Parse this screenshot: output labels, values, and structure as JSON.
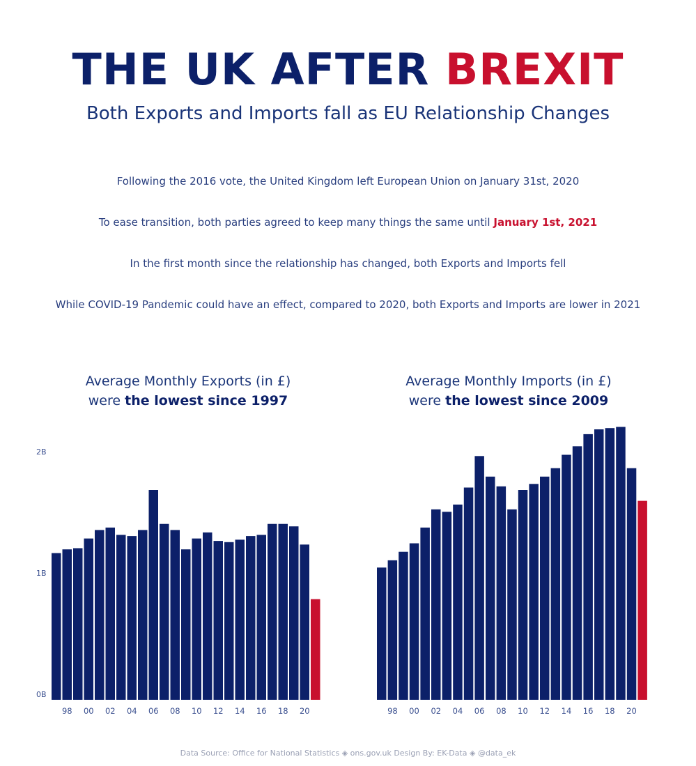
{
  "header": {
    "title_part1": "THE UK AFTER ",
    "title_part2": "BREXIT",
    "subtitle": "Both Exports and Imports fall as EU Relationship Changes"
  },
  "paragraphs": {
    "p1": "Following the 2016 vote, the United Kingdom left European Union on January 31st, 2020",
    "p2_prefix": "To ease transition, both parties agreed to keep many things the same until ",
    "p2_highlight": "January 1st, 2021",
    "p3": "In the first month since the relationship has changed, both Exports and Imports fell",
    "p4": "While COVID-19 Pandemic could have an effect, compared to 2020, both Exports and Imports are lower in 2021"
  },
  "footer": {
    "text": "Data Source: Office for National Statistics ◈ ons.gov.uk    Design By: EK-Data ◈ @data_ek"
  },
  "colors": {
    "navy": "#0c2069",
    "red": "#c8102e",
    "axis_text": "#3a4f8f"
  },
  "chart_data": [
    {
      "type": "bar",
      "title_line1": "Average Monthly Exports (in £)",
      "title_line2_prefix": "were ",
      "title_line2_bold": "the lowest since 1997",
      "x": [
        1997,
        1998,
        1999,
        2000,
        2001,
        2002,
        2003,
        2004,
        2005,
        2006,
        2007,
        2008,
        2009,
        2010,
        2011,
        2012,
        2013,
        2014,
        2015,
        2016,
        2017,
        2018,
        2019,
        2020,
        2021
      ],
      "values": [
        1.21,
        1.24,
        1.25,
        1.33,
        1.4,
        1.42,
        1.36,
        1.35,
        1.4,
        1.73,
        1.45,
        1.4,
        1.24,
        1.33,
        1.38,
        1.31,
        1.3,
        1.32,
        1.35,
        1.36,
        1.45,
        1.45,
        1.43,
        1.28,
        0.83
      ],
      "highlight_last": true,
      "y_ticks": [
        {
          "value": 0,
          "label": "0B"
        },
        {
          "value": 1,
          "label": "1B"
        },
        {
          "value": 2,
          "label": "2B"
        }
      ],
      "x_tick_labels": [
        {
          "year": 1998,
          "label": "98"
        },
        {
          "year": 2000,
          "label": "00"
        },
        {
          "year": 2002,
          "label": "02"
        },
        {
          "year": 2004,
          "label": "04"
        },
        {
          "year": 2006,
          "label": "06"
        },
        {
          "year": 2008,
          "label": "08"
        },
        {
          "year": 2010,
          "label": "10"
        },
        {
          "year": 2012,
          "label": "12"
        },
        {
          "year": 2014,
          "label": "14"
        },
        {
          "year": 2016,
          "label": "16"
        },
        {
          "year": 2018,
          "label": "18"
        },
        {
          "year": 2020,
          "label": "20"
        }
      ],
      "ylim": [
        0,
        2.3
      ],
      "grid": false
    },
    {
      "type": "bar",
      "title_line1": "Average Monthly Imports (in £)",
      "title_line2_prefix": "were ",
      "title_line2_bold": "the lowest since 2009",
      "x": [
        1997,
        1998,
        1999,
        2000,
        2001,
        2002,
        2003,
        2004,
        2005,
        2006,
        2007,
        2008,
        2009,
        2010,
        2011,
        2012,
        2013,
        2014,
        2015,
        2016,
        2017,
        2018,
        2019,
        2020,
        2021
      ],
      "values": [
        1.09,
        1.15,
        1.22,
        1.29,
        1.42,
        1.57,
        1.55,
        1.61,
        1.75,
        2.01,
        1.84,
        1.76,
        1.57,
        1.73,
        1.78,
        1.84,
        1.91,
        2.02,
        2.09,
        2.19,
        2.23,
        2.24,
        2.25,
        1.91,
        1.64
      ],
      "highlight_last": true,
      "x_tick_labels": [
        {
          "year": 1998,
          "label": "98"
        },
        {
          "year": 2000,
          "label": "00"
        },
        {
          "year": 2002,
          "label": "02"
        },
        {
          "year": 2004,
          "label": "04"
        },
        {
          "year": 2006,
          "label": "06"
        },
        {
          "year": 2008,
          "label": "08"
        },
        {
          "year": 2010,
          "label": "10"
        },
        {
          "year": 2012,
          "label": "12"
        },
        {
          "year": 2014,
          "label": "14"
        },
        {
          "year": 2016,
          "label": "16"
        },
        {
          "year": 2018,
          "label": "18"
        },
        {
          "year": 2020,
          "label": "20"
        }
      ],
      "ylim": [
        0,
        2.3
      ],
      "grid": false
    }
  ]
}
